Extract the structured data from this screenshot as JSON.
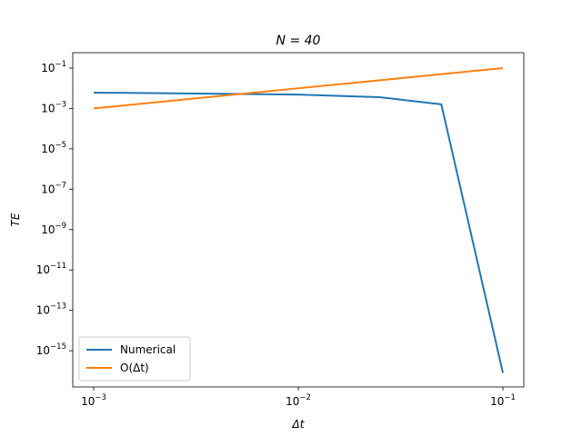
{
  "chart_data": {
    "type": "line",
    "title": "N = 40",
    "xlabel": "Δt",
    "ylabel": "TE",
    "xscale": "log",
    "yscale": "log",
    "x": [
      0.001,
      0.01,
      0.025,
      0.05,
      0.1
    ],
    "series": [
      {
        "name": "Numerical",
        "color": "#1f77b4",
        "values": [
          0.0061,
          0.0049,
          0.0036,
          0.0016,
          8e-17
        ]
      },
      {
        "name": "O(Δt)",
        "color": "#ff7f0e",
        "values": [
          0.001,
          0.01,
          0.025,
          0.05,
          0.1
        ]
      }
    ],
    "xlim": [
      0.00079,
      0.1265
    ],
    "ylim": [
      1.6e-17,
      0.58
    ],
    "xticks": [
      {
        "value": 0.001,
        "label": "10−3"
      },
      {
        "value": 0.01,
        "label": "10−2"
      },
      {
        "value": 0.1,
        "label": "10−1"
      }
    ],
    "yticks": [
      {
        "value": 1e-15,
        "label": "10−15"
      },
      {
        "value": 1e-13,
        "label": "10−13"
      },
      {
        "value": 1e-11,
        "label": "10−11"
      },
      {
        "value": 1e-09,
        "label": "10−9"
      },
      {
        "value": 1e-07,
        "label": "10−7"
      },
      {
        "value": 1e-05,
        "label": "10−5"
      },
      {
        "value": 0.001,
        "label": "10−3"
      },
      {
        "value": 0.1,
        "label": "10−1"
      }
    ],
    "legend": "lower left"
  }
}
